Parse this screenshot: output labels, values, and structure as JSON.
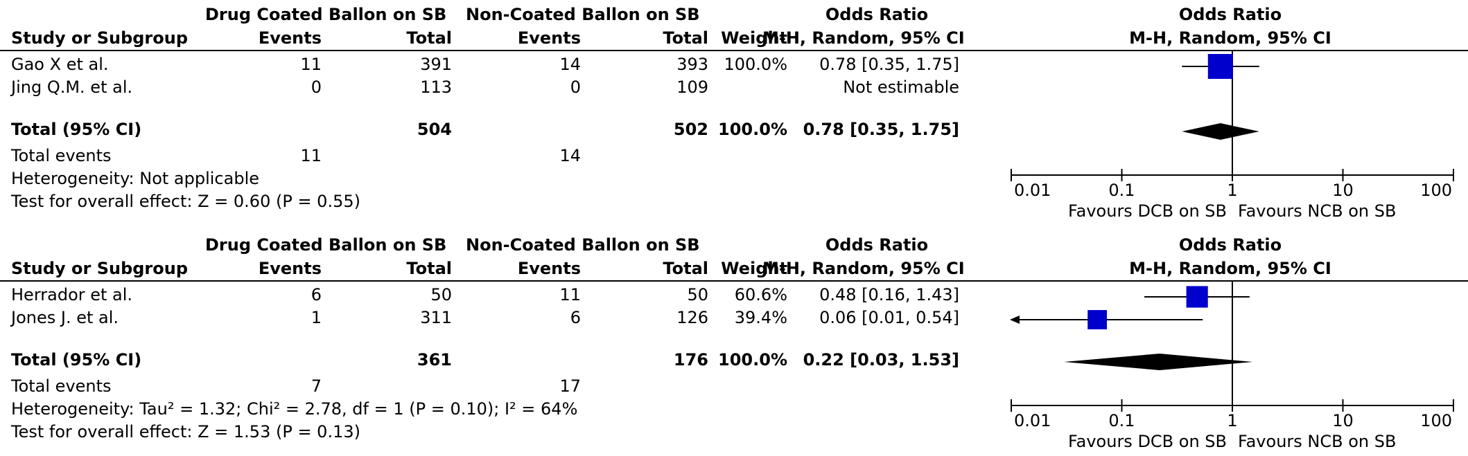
{
  "chart_data": [
    {
      "type": "forest",
      "group_header_dcb": "Drug Coated Ballon on SB",
      "group_header_ncb": "Non-Coated Ballon on SB",
      "col_study": "Study or Subgroup",
      "col_events": "Events",
      "col_total": "Total",
      "col_weight": "Weight",
      "col_or_title": "Odds Ratio",
      "col_or_method": "M-H, Random, 95% CI",
      "plot_title": "Odds Ratio",
      "plot_method": "M-H, Random, 95% CI",
      "studies": [
        {
          "name": "Gao X et al.",
          "e1": "11",
          "n1": "391",
          "e2": "14",
          "n2": "393",
          "weight": "100.0%",
          "ci_text": "0.78 [0.35, 1.75]",
          "or": 0.78,
          "lo": 0.35,
          "hi": 1.75,
          "w": 100
        },
        {
          "name": "Jing Q.M. et al.",
          "e1": "0",
          "n1": "113",
          "e2": "0",
          "n2": "109",
          "weight": "",
          "ci_text": "Not estimable",
          "or": null,
          "lo": null,
          "hi": null,
          "w": 0
        }
      ],
      "total": {
        "label": "Total (95% CI)",
        "n1": "504",
        "n2": "502",
        "weight": "100.0%",
        "ci_text": "0.78 [0.35, 1.75]",
        "or": 0.78,
        "lo": 0.35,
        "hi": 1.75
      },
      "total_events": {
        "label": "Total events",
        "e1": "11",
        "e2": "14"
      },
      "heterogeneity": "Heterogeneity: Not applicable",
      "overall_effect": "Test for overall effect: Z = 0.60 (P = 0.55)",
      "x_axis": {
        "scale": "log",
        "range": [
          0.01,
          100
        ],
        "ticks": [
          0.01,
          0.1,
          1,
          10,
          100
        ],
        "tick_labels": [
          "0.01",
          "0.1",
          "1",
          "10",
          "100"
        ]
      },
      "favours_left": "Favours DCB on SB",
      "favours_right": "Favours NCB on SB",
      "marker_color": "#0000cc"
    },
    {
      "type": "forest",
      "group_header_dcb": "Drug Coated Ballon on SB",
      "group_header_ncb": "Non-Coated Ballon on SB",
      "col_study": "Study or Subgroup",
      "col_events": "Events",
      "col_total": "Total",
      "col_weight": "Weight",
      "col_or_title": "Odds Ratio",
      "col_or_method": "M-H, Random, 95% CI",
      "plot_title": "Odds Ratio",
      "plot_method": "M-H, Random, 95% CI",
      "studies": [
        {
          "name": "Herrador et al.",
          "e1": "6",
          "n1": "50",
          "e2": "11",
          "n2": "50",
          "weight": "60.6%",
          "ci_text": "0.48 [0.16, 1.43]",
          "or": 0.48,
          "lo": 0.16,
          "hi": 1.43,
          "w": 60.6
        },
        {
          "name": "Jones J. et al.",
          "e1": "1",
          "n1": "311",
          "e2": "6",
          "n2": "126",
          "weight": "39.4%",
          "ci_text": "0.06 [0.01, 0.54]",
          "or": 0.06,
          "lo": 0.01,
          "hi": 0.54,
          "w": 39.4
        }
      ],
      "total": {
        "label": "Total (95% CI)",
        "n1": "361",
        "n2": "176",
        "weight": "100.0%",
        "ci_text": "0.22 [0.03, 1.53]",
        "or": 0.22,
        "lo": 0.03,
        "hi": 1.53
      },
      "total_events": {
        "label": "Total events",
        "e1": "7",
        "e2": "17"
      },
      "heterogeneity": "Heterogeneity: Tau² = 1.32; Chi² = 2.78, df = 1 (P = 0.10); I² = 64%",
      "overall_effect": "Test for overall effect: Z = 1.53 (P = 0.13)",
      "x_axis": {
        "scale": "log",
        "range": [
          0.01,
          100
        ],
        "ticks": [
          0.01,
          0.1,
          1,
          10,
          100
        ],
        "tick_labels": [
          "0.01",
          "0.1",
          "1",
          "10",
          "100"
        ]
      },
      "favours_left": "Favours DCB on SB",
      "favours_right": "Favours NCB on SB",
      "marker_color": "#0000cc"
    }
  ]
}
